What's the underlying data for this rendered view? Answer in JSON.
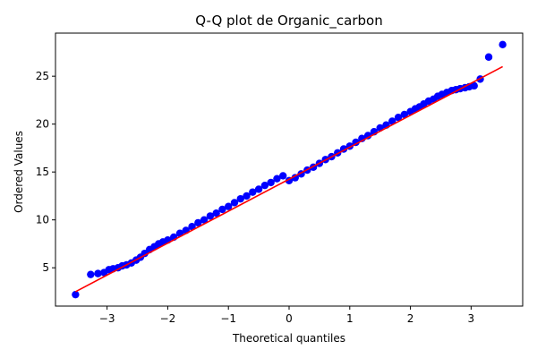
{
  "chart_data": {
    "type": "scatter",
    "title": "Q-Q plot de Organic_carbon",
    "xlabel": "Theoretical quantiles",
    "ylabel": "Ordered Values",
    "xlim": [
      -3.85,
      3.85
    ],
    "ylim": [
      1.0,
      29.5
    ],
    "xticks": [
      -3,
      -2,
      -1,
      0,
      1,
      2,
      3
    ],
    "yticks": [
      5,
      10,
      15,
      20,
      25
    ],
    "grid": false,
    "series": [
      {
        "kind": "points",
        "color": "#0000ff",
        "x": [
          -3.52,
          -3.27,
          -3.15,
          -3.05,
          -2.97,
          -2.9,
          -2.82,
          -2.75,
          -2.68,
          -2.6,
          -2.52,
          -2.45,
          -2.38,
          -2.3,
          -2.22,
          -2.15,
          -2.08,
          -2.0,
          -1.9,
          -1.8,
          -1.7,
          -1.6,
          -1.5,
          -1.4,
          -1.3,
          -1.2,
          -1.1,
          -1.0,
          -0.9,
          -0.8,
          -0.7,
          -0.6,
          -0.5,
          -0.4,
          -0.3,
          -0.2,
          -0.1,
          0.0,
          0.1,
          0.2,
          0.3,
          0.4,
          0.5,
          0.6,
          0.7,
          0.8,
          0.9,
          1.0,
          1.1,
          1.2,
          1.3,
          1.4,
          1.5,
          1.6,
          1.7,
          1.8,
          1.9,
          2.0,
          2.08,
          2.15,
          2.22,
          2.3,
          2.38,
          2.45,
          2.52,
          2.6,
          2.68,
          2.75,
          2.82,
          2.9,
          2.97,
          3.05,
          3.15,
          3.29,
          3.52
        ],
        "y": [
          2.2,
          4.3,
          4.4,
          4.5,
          4.8,
          4.9,
          5.0,
          5.2,
          5.3,
          5.5,
          5.8,
          6.1,
          6.5,
          6.9,
          7.2,
          7.5,
          7.7,
          7.9,
          8.2,
          8.6,
          8.9,
          9.3,
          9.7,
          10.0,
          10.4,
          10.7,
          11.1,
          11.4,
          11.8,
          12.2,
          12.5,
          12.9,
          13.2,
          13.6,
          13.9,
          14.3,
          14.6,
          14.1,
          14.4,
          14.8,
          15.2,
          15.5,
          15.9,
          16.3,
          16.6,
          17.0,
          17.4,
          17.7,
          18.1,
          18.5,
          18.8,
          19.2,
          19.6,
          19.9,
          20.3,
          20.7,
          21.0,
          21.3,
          21.6,
          21.8,
          22.1,
          22.4,
          22.6,
          22.9,
          23.1,
          23.3,
          23.5,
          23.6,
          23.7,
          23.8,
          23.9,
          24.0,
          24.7,
          27.0,
          28.3
        ]
      },
      {
        "kind": "fit-line",
        "color": "#ff0000",
        "x": [
          -3.52,
          3.52
        ],
        "y": [
          2.5,
          26.0
        ]
      }
    ]
  }
}
